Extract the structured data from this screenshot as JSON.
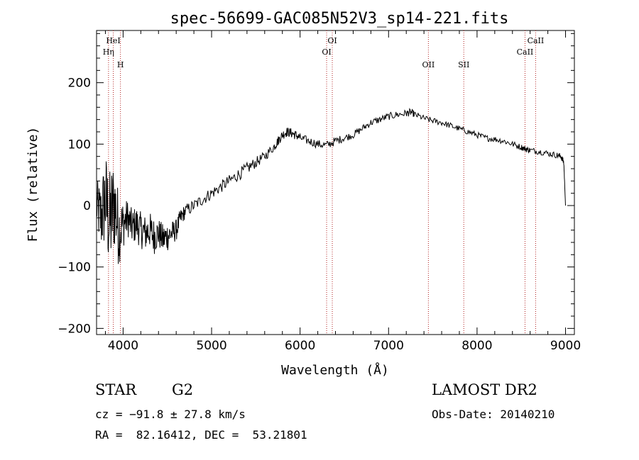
{
  "chart_data": {
    "type": "line",
    "title": "spec-56699-GAC085N52V3_sp14-221.fits",
    "xlabel": "Wavelength (Å)",
    "ylabel": "Flux (relative)",
    "xlim": [
      3700,
      9100
    ],
    "ylim": [
      -210,
      285
    ],
    "xticks": [
      4000,
      5000,
      6000,
      7000,
      8000,
      9000
    ],
    "yticks": [
      -200,
      -100,
      0,
      100,
      200
    ],
    "grid": false,
    "series": [
      {
        "color": "#000000",
        "x": [
          3700,
          3750,
          3800,
          3850,
          3900,
          3950,
          4000,
          4050,
          4100,
          4150,
          4200,
          4250,
          4300,
          4350,
          4400,
          4450,
          4500,
          4550,
          4600,
          4650,
          4700,
          4800,
          4900,
          5000,
          5100,
          5200,
          5300,
          5400,
          5500,
          5600,
          5700,
          5750,
          5800,
          5850,
          5900,
          5950,
          6000,
          6100,
          6200,
          6300,
          6400,
          6500,
          6600,
          6700,
          6800,
          6900,
          7000,
          7100,
          7200,
          7250,
          7300,
          7400,
          7500,
          7600,
          7700,
          7800,
          7900,
          8000,
          8100,
          8200,
          8300,
          8400,
          8500,
          8550,
          8600,
          8700,
          8800,
          8900,
          8950,
          8980,
          9000
        ],
        "y": [
          0,
          -20,
          10,
          -30,
          5,
          -40,
          -30,
          -20,
          -35,
          -30,
          -40,
          -45,
          -40,
          -50,
          -45,
          -55,
          -50,
          -45,
          -40,
          -20,
          -10,
          0,
          10,
          20,
          30,
          40,
          50,
          60,
          70,
          80,
          95,
          105,
          115,
          120,
          118,
          115,
          110,
          105,
          100,
          98,
          105,
          110,
          115,
          125,
          135,
          140,
          145,
          148,
          150,
          152,
          148,
          142,
          138,
          135,
          130,
          125,
          120,
          115,
          110,
          108,
          105,
          100,
          95,
          92,
          90,
          88,
          85,
          82,
          80,
          70,
          0
        ],
        "noise": [
          40,
          60,
          80,
          90,
          80,
          60,
          40,
          30,
          30,
          30,
          30,
          30,
          30,
          30,
          25,
          25,
          25,
          20,
          18,
          15,
          12,
          10,
          10,
          10,
          10,
          10,
          10,
          10,
          9,
          8,
          8,
          8,
          8,
          8,
          8,
          8,
          7,
          7,
          7,
          7,
          7,
          6,
          6,
          6,
          6,
          6,
          6,
          6,
          6,
          6,
          5,
          5,
          5,
          5,
          5,
          5,
          5,
          5,
          5,
          5,
          5,
          5,
          5,
          5,
          5,
          5,
          5,
          5,
          5,
          5,
          0
        ]
      }
    ],
    "spectral_lines": [
      {
        "label": "HeI",
        "x": 3889,
        "row": 1
      },
      {
        "label": "Hη",
        "x": 3835,
        "row": 2
      },
      {
        "label": "H",
        "x": 3970,
        "row": 3
      },
      {
        "label": "OI",
        "x": 6364,
        "row": 1
      },
      {
        "label": "OI",
        "x": 6300,
        "row": 2
      },
      {
        "label": "OII",
        "x": 7450,
        "row": 3
      },
      {
        "label": "SII",
        "x": 7850,
        "row": 3
      },
      {
        "label": "CaII",
        "x": 8662,
        "row": 1
      },
      {
        "label": "CaII",
        "x": 8542,
        "row": 2
      }
    ],
    "line_color": "#b22222"
  },
  "info": {
    "class": "STAR",
    "subclass": "G2",
    "survey": "LAMOST DR2",
    "cz": "cz = −91.8 ± 27.8 km/s",
    "obs_date": "Obs-Date: 20140210",
    "coords": "RA =  82.16412, DEC =  53.21801"
  }
}
